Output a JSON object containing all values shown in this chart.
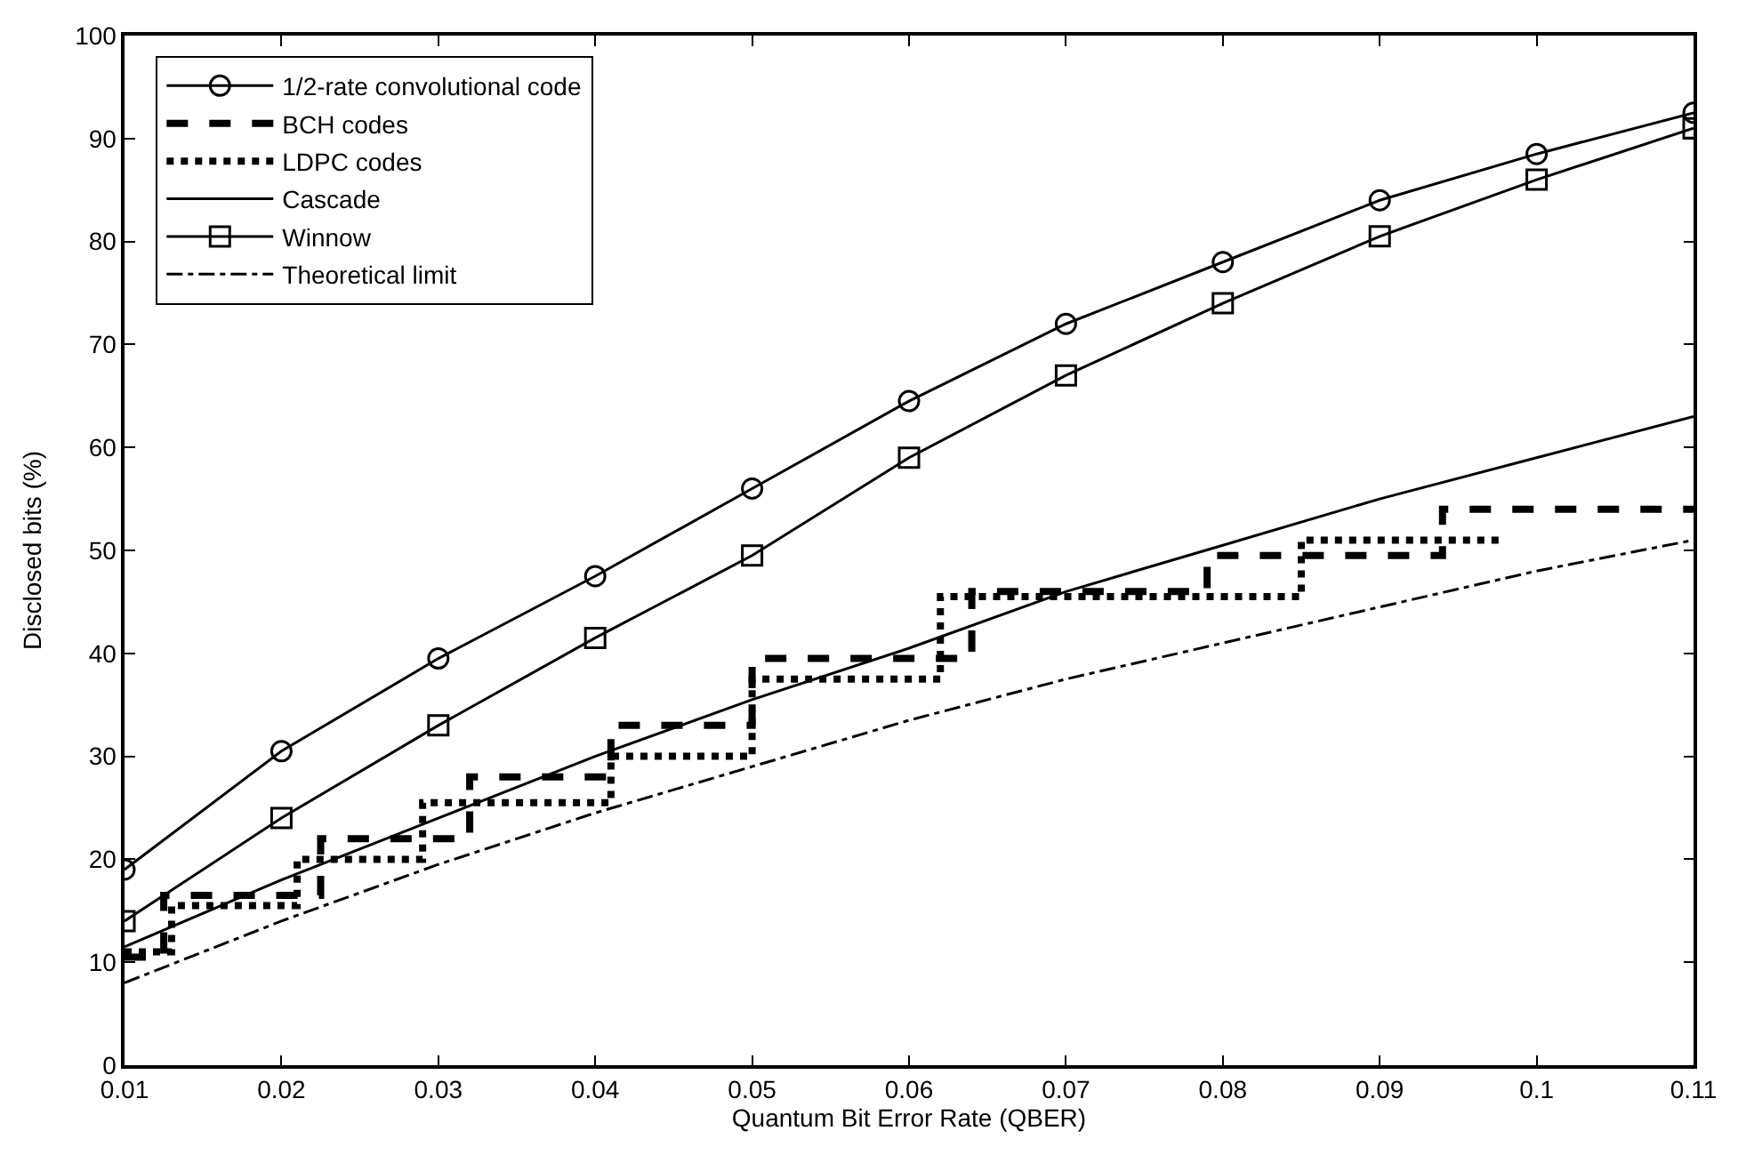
{
  "chart_data": {
    "type": "line",
    "xlabel": "Quantum Bit Error Rate (QBER)",
    "ylabel": "Disclosed bits (%)",
    "xlim": [
      0.01,
      0.11
    ],
    "xticks": [
      0.01,
      0.02,
      0.03,
      0.04,
      0.05,
      0.06,
      0.07,
      0.08,
      0.09,
      0.1,
      0.11
    ],
    "ylim": [
      0,
      100
    ],
    "yticks": [
      0,
      10,
      20,
      30,
      40,
      50,
      60,
      70,
      80,
      90,
      100
    ],
    "legend": "top left",
    "series": [
      {
        "name": "1/2-rate convolutional code",
        "color": "#000000",
        "marker": "circle",
        "line_style": "solid",
        "x": [
          0.01,
          0.02,
          0.03,
          0.04,
          0.05,
          0.06,
          0.07,
          0.08,
          0.09,
          0.1,
          0.11
        ],
        "values": [
          19,
          30.5,
          39.5,
          47.5,
          56,
          64.5,
          72,
          78,
          84,
          88.5,
          92.5
        ]
      },
      {
        "name": "BCH codes",
        "color": "#000000",
        "marker": "none",
        "line_style": "dashed",
        "x": [
          0.01,
          0.0125,
          0.0125,
          0.0225,
          0.0225,
          0.032,
          0.032,
          0.041,
          0.041,
          0.05,
          0.05,
          0.064,
          0.064,
          0.079,
          0.079,
          0.094,
          0.094,
          0.11
        ],
        "values": [
          10.5,
          10.5,
          16.5,
          16.5,
          22,
          22,
          28,
          28,
          33,
          33,
          39.5,
          39.5,
          46,
          46,
          49.5,
          49.5,
          54,
          54
        ]
      },
      {
        "name": "LDPC codes",
        "color": "#000000",
        "marker": "none",
        "line_style": "dotted",
        "x": [
          0.01,
          0.013,
          0.013,
          0.021,
          0.021,
          0.029,
          0.029,
          0.041,
          0.041,
          0.05,
          0.05,
          0.062,
          0.062,
          0.085,
          0.085,
          0.098
        ],
        "values": [
          11,
          11,
          15.5,
          15.5,
          20,
          20,
          25.5,
          25.5,
          30,
          30,
          37.5,
          37.5,
          45.5,
          45.5,
          51,
          51
        ]
      },
      {
        "name": "Cascade",
        "color": "#000000",
        "marker": "none",
        "line_style": "solid",
        "x": [
          0.01,
          0.02,
          0.03,
          0.04,
          0.05,
          0.06,
          0.07,
          0.08,
          0.09,
          0.1,
          0.11
        ],
        "values": [
          11.5,
          18,
          24,
          30,
          35.5,
          40.5,
          46,
          50.5,
          55,
          59,
          63
        ]
      },
      {
        "name": "Winnow",
        "color": "#000000",
        "marker": "square",
        "line_style": "solid",
        "x": [
          0.01,
          0.02,
          0.03,
          0.04,
          0.05,
          0.06,
          0.07,
          0.08,
          0.09,
          0.1,
          0.11
        ],
        "values": [
          14,
          24,
          33,
          41.5,
          49.5,
          59,
          67,
          74,
          80.5,
          86,
          91
        ]
      },
      {
        "name": "Theoretical limit",
        "color": "#000000",
        "marker": "none",
        "line_style": "dashdot",
        "x": [
          0.01,
          0.02,
          0.03,
          0.04,
          0.05,
          0.06,
          0.07,
          0.08,
          0.09,
          0.1,
          0.11
        ],
        "values": [
          8,
          14,
          19.5,
          24.5,
          29,
          33.5,
          37.5,
          41,
          44.5,
          48,
          51
        ]
      }
    ]
  }
}
